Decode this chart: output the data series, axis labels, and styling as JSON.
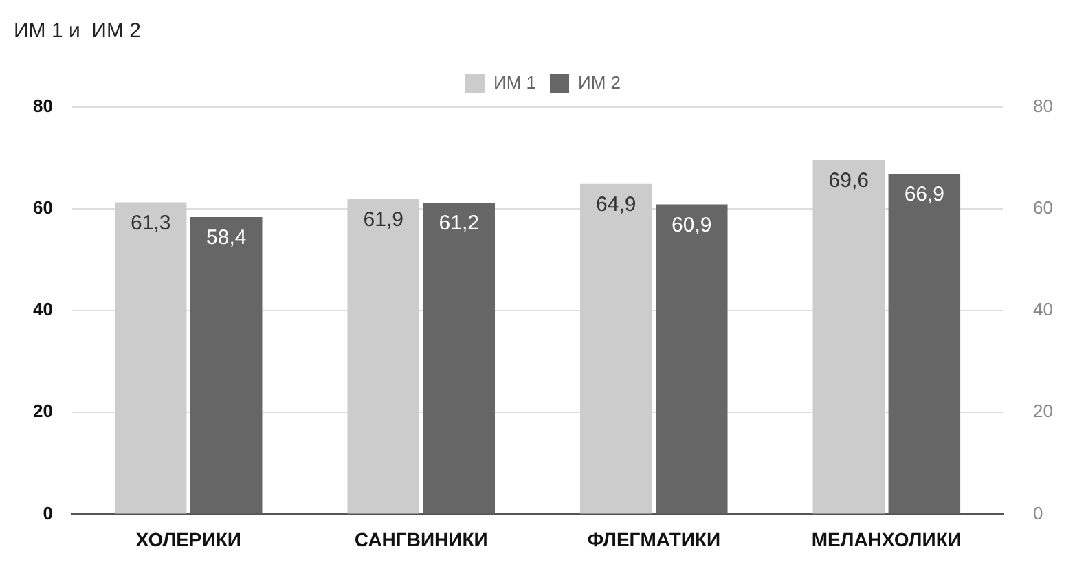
{
  "chart_data": {
    "type": "bar",
    "title": "ИМ 1 и  ИМ 2",
    "categories": [
      "ХОЛЕРИКИ",
      "САНГВИНИКИ",
      "ФЛЕГМАТИКИ",
      "МЕЛАНХОЛИКИ"
    ],
    "series": [
      {
        "name": "ИМ 1",
        "color": "#cccccc",
        "values": [
          61.3,
          61.9,
          64.9,
          69.6
        ],
        "value_labels": [
          "61,3",
          "61,9",
          "64,9",
          "69,6"
        ]
      },
      {
        "name": "ИМ 2",
        "color": "#666666",
        "values": [
          58.4,
          61.2,
          60.9,
          66.9
        ],
        "value_labels": [
          "58,4",
          "61,2",
          "60,9",
          "66,9"
        ]
      }
    ],
    "ylim": [
      0,
      80
    ],
    "yticks": [
      0,
      20,
      40,
      60,
      80
    ],
    "y2lim": [
      0,
      80
    ],
    "y2ticks": [
      0,
      20,
      40,
      60,
      80
    ],
    "grid": "y",
    "legend": "top"
  }
}
